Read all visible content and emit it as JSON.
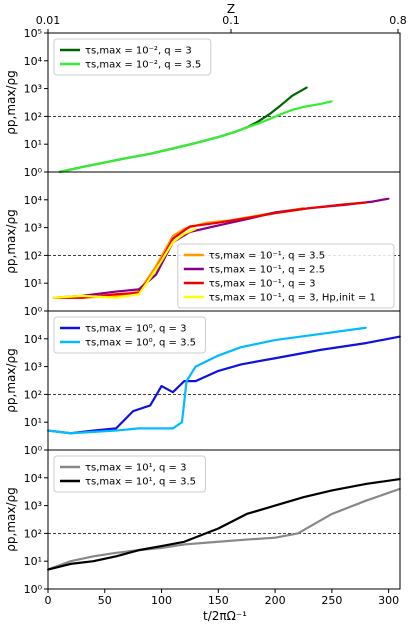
{
  "figure": {
    "top_axis_label": "Z",
    "x_label": "t/2πΩ⁻¹",
    "y_label": "ρp,max/ρg"
  },
  "chart_data": [
    {
      "type": "line",
      "panel": 1,
      "ylabel": "ρp,max/ρg",
      "y_scale": "log",
      "ylim": [
        1,
        100000
      ],
      "xlim": [
        0,
        310
      ],
      "x_secondary_axis": {
        "label": "Z",
        "ticks": [
          "0.01",
          "0.1",
          "0.8"
        ]
      },
      "y_tick_labels": [
        "10⁰",
        "10¹",
        "10²",
        "10³",
        "10⁴",
        "10⁵"
      ],
      "reference_line": {
        "y": 100,
        "style": "dashed"
      },
      "legend_position": "top-left",
      "series": [
        {
          "name": "τs,max = 10⁻², q = 3",
          "color": "#006400",
          "x": [
            10,
            30,
            50,
            70,
            90,
            110,
            130,
            150,
            165,
            175,
            185,
            195,
            205,
            215,
            228
          ],
          "y": [
            1,
            1.5,
            2.2,
            3.2,
            4.5,
            7,
            11,
            18,
            28,
            40,
            65,
            120,
            250,
            550,
            1100
          ]
        },
        {
          "name": "τs,max = 10⁻², q = 3.5",
          "color": "#33ee33",
          "x": [
            10,
            30,
            50,
            70,
            90,
            110,
            130,
            150,
            165,
            175,
            185,
            195,
            205,
            215,
            225,
            240,
            250
          ],
          "y": [
            1,
            1.5,
            2.2,
            3.2,
            4.5,
            7,
            11,
            18,
            28,
            40,
            55,
            80,
            120,
            170,
            220,
            280,
            350
          ]
        }
      ]
    },
    {
      "type": "line",
      "panel": 2,
      "ylabel": "ρp,max/ρg",
      "y_scale": "log",
      "ylim": [
        1,
        100000
      ],
      "xlim": [
        0,
        310
      ],
      "y_tick_labels": [
        "10⁰",
        "10¹",
        "10²",
        "10³",
        "10⁴"
      ],
      "reference_line": {
        "y": 100,
        "style": "dashed"
      },
      "legend_position": "center-right",
      "series": [
        {
          "name": "τs,max = 10⁻¹, q = 3.5",
          "color": "#ff9900",
          "x": [
            5,
            30,
            60,
            80,
            95,
            110,
            120,
            140,
            160,
            180,
            200,
            225
          ],
          "y": [
            3,
            3,
            3.5,
            5,
            40,
            500,
            900,
            1500,
            1800,
            2500,
            3500,
            5000
          ]
        },
        {
          "name": "τs,max = 10⁻¹, q = 2.5",
          "color": "#880088",
          "x": [
            5,
            30,
            60,
            80,
            95,
            110,
            125,
            150,
            175,
            200,
            230,
            260,
            285,
            300
          ],
          "y": [
            3,
            3.5,
            5,
            6,
            20,
            300,
            700,
            1200,
            2000,
            3500,
            5000,
            6500,
            8500,
            11000
          ]
        },
        {
          "name": "τs,max = 10⁻¹, q = 3",
          "color": "#ee0000",
          "x": [
            5,
            30,
            60,
            80,
            95,
            110,
            125,
            150,
            175,
            200,
            230,
            260,
            280
          ],
          "y": [
            3,
            3,
            4,
            4.5,
            30,
            400,
            1100,
            1500,
            2200,
            3300,
            5000,
            6800,
            8000
          ]
        },
        {
          "name": "τs,max = 10⁻¹, q = 3, Hp,init = 1",
          "color": "#ffff00",
          "x": [
            5,
            30,
            60,
            80,
            95,
            110,
            120,
            130
          ],
          "y": [
            3,
            3.5,
            3,
            4,
            30,
            300,
            600,
            900
          ]
        }
      ]
    },
    {
      "type": "line",
      "panel": 3,
      "ylabel": "ρp,max/ρg",
      "y_scale": "log",
      "ylim": [
        1,
        100000
      ],
      "xlim": [
        0,
        310
      ],
      "y_tick_labels": [
        "10⁰",
        "10¹",
        "10²",
        "10³",
        "10⁴"
      ],
      "reference_line": {
        "y": 100,
        "style": "dashed"
      },
      "legend_position": "top-left",
      "series": [
        {
          "name": "τs,max = 10⁰, q = 3",
          "color": "#1111dd",
          "x": [
            0,
            20,
            40,
            60,
            75,
            90,
            100,
            110,
            120,
            130,
            150,
            170,
            200,
            240,
            280,
            310
          ],
          "y": [
            5,
            4,
            5,
            6,
            25,
            40,
            200,
            120,
            300,
            300,
            700,
            1200,
            2000,
            4000,
            7000,
            12000
          ]
        },
        {
          "name": "τs,max = 10⁰, q = 3.5",
          "color": "#00bbff",
          "x": [
            0,
            20,
            40,
            60,
            80,
            100,
            110,
            118,
            122,
            130,
            150,
            170,
            200,
            240,
            280
          ],
          "y": [
            5,
            4,
            4.5,
            5,
            6,
            6,
            6,
            10,
            300,
            1000,
            2500,
            5000,
            9000,
            15000,
            25000
          ]
        }
      ]
    },
    {
      "type": "line",
      "panel": 4,
      "ylabel": "ρp,max/ρg",
      "y_scale": "log",
      "ylim": [
        1,
        100000
      ],
      "xlim": [
        0,
        310
      ],
      "x_ticks": [
        0,
        50,
        100,
        150,
        200,
        250,
        300
      ],
      "xlabel": "t/2πΩ⁻¹",
      "y_tick_labels": [
        "10⁰",
        "10¹",
        "10²",
        "10³",
        "10⁴"
      ],
      "reference_line": {
        "y": 100,
        "style": "dashed"
      },
      "legend_position": "top-left",
      "series": [
        {
          "name": "τs,max = 10¹, q = 3",
          "color": "#888888",
          "x": [
            0,
            20,
            40,
            60,
            80,
            100,
            120,
            150,
            175,
            200,
            220,
            250,
            280,
            310
          ],
          "y": [
            5,
            10,
            15,
            20,
            25,
            30,
            40,
            50,
            60,
            70,
            100,
            500,
            1500,
            4000
          ]
        },
        {
          "name": "τs,max = 10¹, q = 3.5",
          "color": "#000000",
          "x": [
            0,
            20,
            40,
            60,
            80,
            100,
            120,
            150,
            175,
            200,
            225,
            250,
            280,
            310
          ],
          "y": [
            5,
            8,
            10,
            15,
            25,
            35,
            50,
            150,
            500,
            1000,
            2000,
            3500,
            6000,
            9000
          ]
        }
      ]
    }
  ]
}
